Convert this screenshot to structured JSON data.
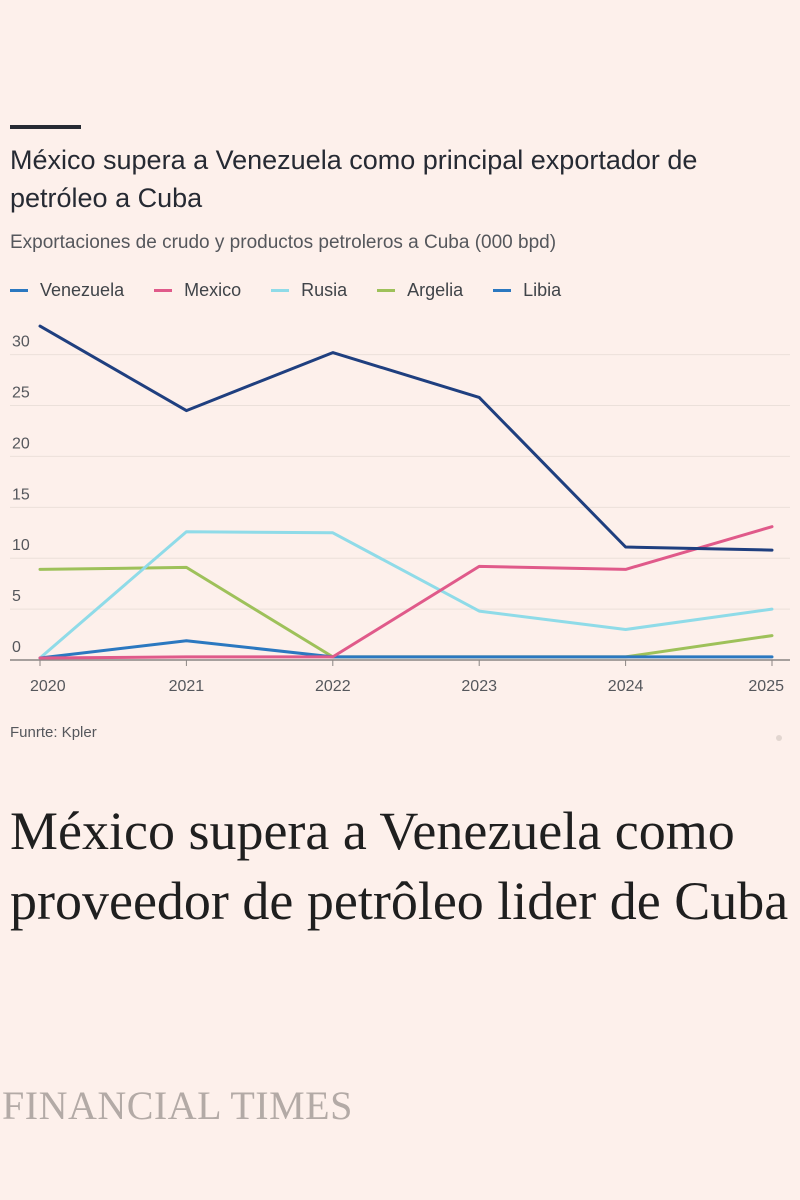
{
  "chart": {
    "title": "México supera a Venezuela como principal exportador de petróleo a Cuba",
    "subtitle": "Exportaciones de crudo y productos petroleros a Cuba (000 bpd)",
    "source": "Funrte: Kpler"
  },
  "article": {
    "headline": "México supera a Venezuela como proveedor de petrôleo lider de Cuba",
    "publication": "FINANCIAL TIMES"
  },
  "chart_data": {
    "type": "line",
    "title": "México supera a Venezuela como principal exportador de petróleo a Cuba",
    "subtitle": "Exportaciones de crudo y productos petroleros a Cuba (000 bpd)",
    "xlabel": "",
    "ylabel": "",
    "x": [
      2020,
      2021,
      2022,
      2023,
      2024,
      2025
    ],
    "x_ticks": [
      "2020",
      "2021",
      "2022",
      "2023",
      "2024",
      "2025"
    ],
    "y_ticks": [
      0,
      5,
      10,
      15,
      20,
      25,
      30
    ],
    "ylim": [
      0,
      33.5
    ],
    "grid": "horizontal",
    "legend_position": "top-left",
    "series": [
      {
        "name": "Venezuela",
        "color": "#1f3f7f",
        "values": [
          32.8,
          24.5,
          30.2,
          25.8,
          11.1,
          10.8
        ]
      },
      {
        "name": "Mexico",
        "color": "#e05a8a",
        "values": [
          0.2,
          0.3,
          0.3,
          9.2,
          8.9,
          13.1
        ]
      },
      {
        "name": "Rusia",
        "color": "#8fdbe8",
        "values": [
          0.2,
          12.6,
          12.5,
          4.8,
          3.0,
          5.0
        ]
      },
      {
        "name": "Argelia",
        "color": "#9ec15a",
        "values": [
          8.9,
          9.1,
          0.3,
          0.3,
          0.3,
          2.4
        ]
      },
      {
        "name": "Libia",
        "color": "#2b78c0",
        "values": [
          0.2,
          1.9,
          0.3,
          0.3,
          0.3,
          0.3
        ]
      }
    ],
    "legend_swatch_colors": [
      "#2b78c0",
      "#e05a8a",
      "#8fdbe8",
      "#9ec15a",
      "#2b78c0"
    ]
  }
}
